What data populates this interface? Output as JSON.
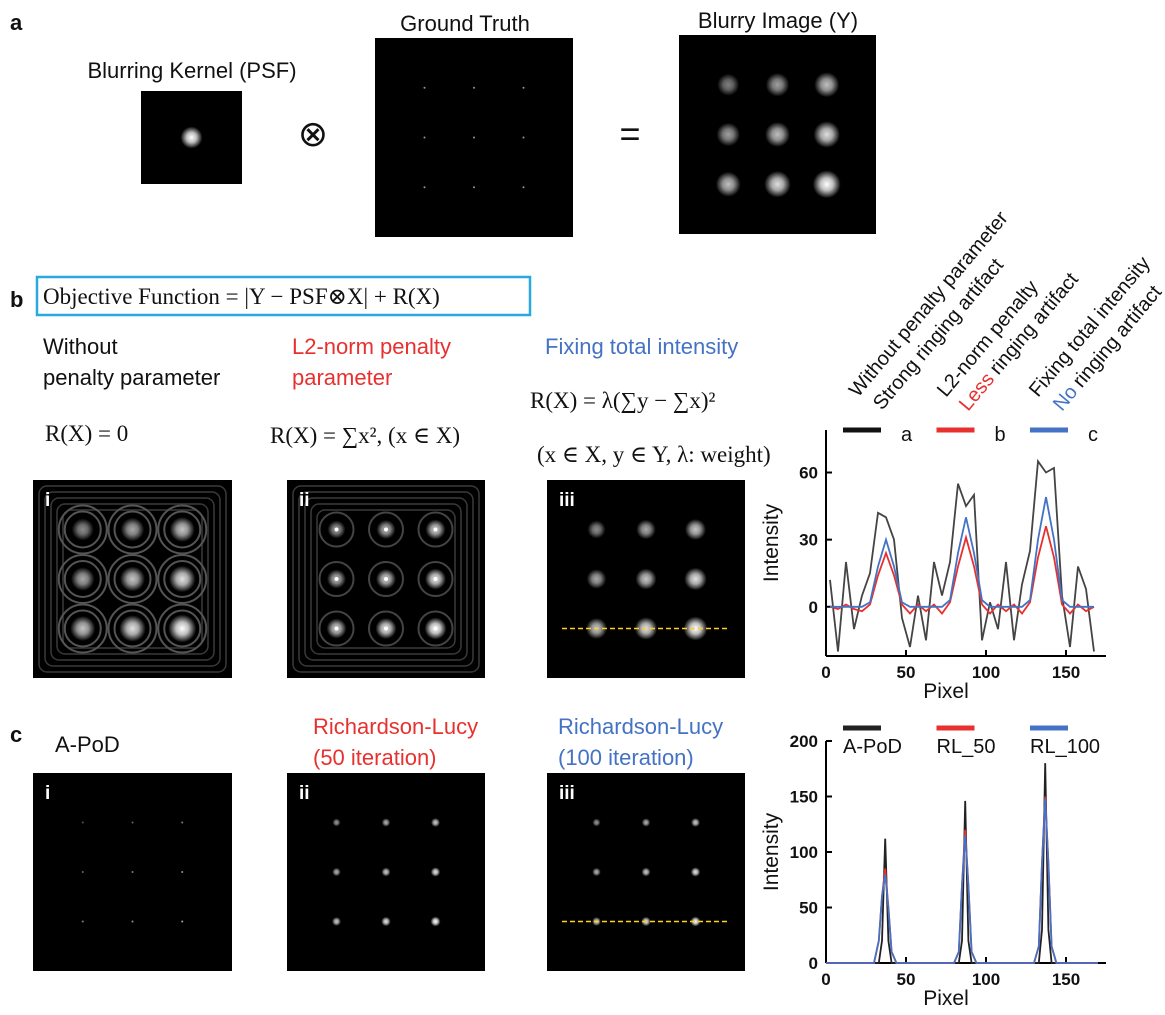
{
  "panel_a": {
    "label": "a",
    "kernel_title": "Blurring Kernel (PSF)",
    "truth_title": "Ground Truth",
    "blurry_title": "Blurry Image (Y)",
    "convolve": "⊗",
    "equals": "="
  },
  "panel_b": {
    "label": "b",
    "objective": "Objective Function = |Y  − PSF⊗X| + R(X)",
    "methods": [
      {
        "title": [
          "Without",
          "penalty parameter"
        ],
        "formula": [
          "R(X) = 0"
        ],
        "image_label": "i"
      },
      {
        "title": [
          "L2-norm penalty",
          "parameter"
        ],
        "formula": [
          "R(X) = ∑x², (x ∈ X)"
        ],
        "image_label": "ii"
      },
      {
        "title": [
          "Fixing total intensity"
        ],
        "formula": [
          "R(X) = λ(∑y − ∑x)²",
          "(x ∈ X, y ∈ Y, λ: weight)"
        ],
        "image_label": "iii"
      }
    ]
  },
  "panel_c": {
    "label": "c",
    "methods": [
      {
        "title": [
          "A-PoD"
        ],
        "image_label": "i"
      },
      {
        "title": [
          "Richardson-Lucy",
          "(50 iteration)"
        ],
        "image_label": "ii"
      },
      {
        "title": [
          "Richardson-Lucy",
          "(100 iteration)"
        ],
        "image_label": "iii"
      }
    ]
  },
  "chart_data": [
    {
      "type": "line",
      "x_label": "Pixel",
      "y_label": "Intensity",
      "annotations": [
        "Without penalty parameter",
        "Strong ringing artifact",
        "L2-norm penalty",
        "Less",
        "ringing artifact",
        "Fixing total intensity",
        "No",
        "ringing artifact"
      ],
      "xlim": [
        0,
        175
      ],
      "xticks": [
        0,
        50,
        100,
        150
      ],
      "ylim": [
        -22,
        79
      ],
      "yticks": [
        0,
        30,
        60
      ],
      "x": [
        2.5,
        7.5,
        12.5,
        17.5,
        22.5,
        27.5,
        32.5,
        37.5,
        42.5,
        47.5,
        52.5,
        57.5,
        62.5,
        67.5,
        72.5,
        77.5,
        82.5,
        87.5,
        92.5,
        97.5,
        102.5,
        107.5,
        112.5,
        117.5,
        122.5,
        127.5,
        132.5,
        137.5,
        142.5,
        147.5,
        152.5,
        157.5,
        162.5,
        167.5
      ],
      "series": [
        {
          "name": "a",
          "color": "#444444",
          "legend_color": "#111111",
          "values": [
            12,
            -20,
            20,
            -10,
            5,
            15,
            42,
            40,
            30,
            -5,
            -18,
            5,
            -15,
            20,
            5,
            20,
            55,
            45,
            50,
            -15,
            2,
            -10,
            20,
            -15,
            10,
            25,
            65,
            60,
            62,
            5,
            -18,
            18,
            8,
            -20
          ]
        },
        {
          "name": "b",
          "color": "#e8312f",
          "values": [
            0,
            -1,
            1,
            -1,
            -2,
            1,
            14,
            24,
            14,
            1,
            -3,
            1,
            -2,
            1,
            -3,
            2,
            18,
            31,
            18,
            1,
            -3,
            1,
            -2,
            1,
            -3,
            2,
            22,
            36,
            22,
            1,
            -3,
            1,
            -2,
            0
          ]
        },
        {
          "name": "c",
          "color": "#4472c4",
          "values": [
            0,
            0,
            0,
            0,
            0,
            2,
            18,
            30,
            18,
            2,
            0,
            0,
            0,
            0,
            0,
            3,
            24,
            40,
            24,
            3,
            0,
            0,
            0,
            0,
            0,
            3,
            30,
            49,
            30,
            3,
            0,
            0,
            0,
            0
          ]
        }
      ]
    },
    {
      "type": "line",
      "x_label": "Pixel",
      "y_label": "Intensity",
      "xlim": [
        0,
        175
      ],
      "xticks": [
        0,
        50,
        100,
        150
      ],
      "ylim": [
        0,
        200
      ],
      "yticks": [
        0,
        50,
        100,
        150,
        200
      ],
      "x": [
        0,
        30,
        33,
        35,
        37,
        39,
        41,
        44,
        80,
        83,
        85,
        87,
        89,
        91,
        94,
        130,
        133,
        135,
        137,
        139,
        141,
        144,
        170
      ],
      "series": [
        {
          "name": "A-PoD",
          "color": "#222222",
          "values": [
            0,
            0,
            0,
            20,
            112,
            20,
            0,
            0,
            0,
            0,
            20,
            146,
            20,
            0,
            0,
            0,
            0,
            30,
            180,
            30,
            0,
            0,
            0
          ]
        },
        {
          "name": "RL_50",
          "color": "#e8312f",
          "values": [
            0,
            0,
            20,
            60,
            85,
            50,
            10,
            0,
            0,
            10,
            70,
            120,
            70,
            10,
            0,
            0,
            15,
            90,
            150,
            90,
            15,
            0,
            0
          ]
        },
        {
          "name": "RL_100",
          "color": "#4472c4",
          "values": [
            0,
            0,
            20,
            60,
            80,
            50,
            10,
            0,
            0,
            10,
            70,
            115,
            70,
            10,
            0,
            0,
            15,
            90,
            148,
            90,
            15,
            0,
            0
          ]
        }
      ]
    }
  ]
}
